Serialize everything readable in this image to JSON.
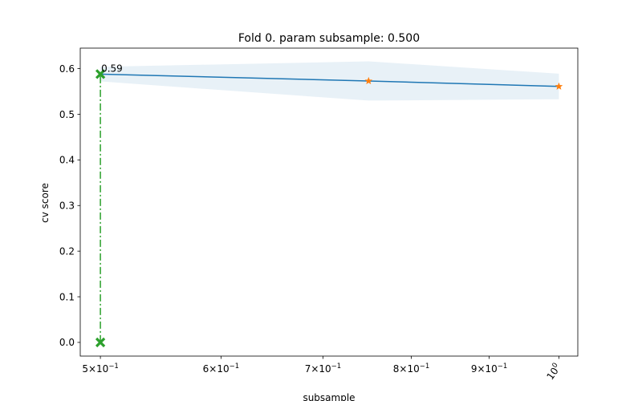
{
  "chart_data": {
    "type": "line",
    "title": "Fold 0. param subsample: 0.500",
    "xlabel": "subsample",
    "ylabel": "cv score",
    "x_scale": "log",
    "xlim": [
      0.485,
      1.029
    ],
    "ylim": [
      -0.03,
      0.645
    ],
    "grid": false,
    "x_ticks": [
      {
        "value": 0.5,
        "base": "5×10",
        "exp": "−1"
      },
      {
        "value": 0.6,
        "base": "6×10",
        "exp": "−1"
      },
      {
        "value": 0.7,
        "base": "7×10",
        "exp": "−1"
      },
      {
        "value": 0.8,
        "base": "8×10",
        "exp": "−1"
      },
      {
        "value": 0.9,
        "base": "9×10",
        "exp": "−1"
      },
      {
        "value": 1.0,
        "base": "10",
        "exp": "0",
        "rotated": true
      }
    ],
    "y_ticks": [
      "0.0",
      "0.1",
      "0.2",
      "0.3",
      "0.4",
      "0.5",
      "0.6"
    ],
    "series": [
      {
        "kind": "line",
        "color": "#1f77b4",
        "x": [
          0.5,
          0.75,
          1.0
        ],
        "y": [
          0.588,
          0.573,
          0.561
        ],
        "band_lower": [
          0.572,
          0.53,
          0.533
        ],
        "band_upper": [
          0.604,
          0.616,
          0.589
        ],
        "band_color": "#1f77b4"
      },
      {
        "kind": "markers",
        "marker": "star",
        "color": "#ff7f0e",
        "x": [
          0.75,
          1.0
        ],
        "y": [
          0.573,
          0.561
        ]
      },
      {
        "kind": "best",
        "marker": "x",
        "color": "#2ca02c",
        "x": [
          0.5,
          0.5
        ],
        "y": [
          0.0,
          0.588
        ]
      }
    ],
    "annotation": {
      "text": "0.59",
      "x": 0.5,
      "y": 0.588
    }
  }
}
